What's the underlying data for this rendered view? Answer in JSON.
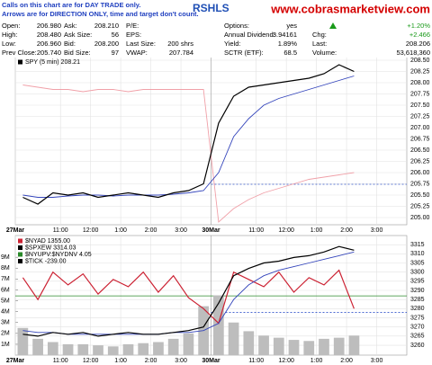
{
  "header": {
    "title": "RSHLS",
    "watermark": "www.cobrasmarketview.com",
    "notes": [
      "Calls on this chart are for DAY TRADE only.",
      "Arrows are for DIRECTION ONLY, time and target don't count."
    ]
  },
  "quote": {
    "rows": [
      [
        {
          "label": "Open:",
          "value": "206.980"
        },
        {
          "label": "Ask:",
          "value": "208.210"
        },
        {
          "label": "P/E:"
        },
        {
          "label": "Options:",
          "value": "yes"
        },
        {
          "value": "+1.20%",
          "color": "#1a9a1a"
        }
      ],
      [
        {
          "label": "High:",
          "value": "208.480"
        },
        {
          "label": "Ask Size:",
          "value": "56"
        },
        {
          "label": "EPS:"
        },
        {
          "label": "Annual Dividend:",
          "value": "3.94161"
        },
        {
          "label": "Chg:",
          "value": "+2.466",
          "color": "#1a9a1a"
        }
      ],
      [
        {
          "label": "Low:",
          "value": "206.960"
        },
        {
          "label": "Bid:",
          "value": "208.200"
        },
        {
          "label": "Last Size:",
          "value": "200 shrs"
        },
        {
          "label": "Yield:",
          "value": "1.89%"
        },
        {
          "label": "Last:",
          "value": "208.206"
        }
      ],
      [
        {
          "label": "Prev Close:",
          "value": "205.740"
        },
        {
          "label": "Bid Size:",
          "value": "97"
        },
        {
          "label": "VWAP:",
          "value": "207.784"
        },
        {
          "label": "SCTR (ETF):",
          "value": "68.5"
        },
        {
          "label": "Volume:",
          "value": "53,618,360"
        }
      ]
    ]
  },
  "chart_data": [
    {
      "type": "line",
      "grid": true,
      "categories": [
        "27Mar",
        null,
        null,
        "11:00",
        null,
        "12:00",
        null,
        "1:00",
        null,
        "2:00",
        null,
        "3:00",
        null,
        "30Mar",
        null,
        null,
        "11:00",
        null,
        "12:00",
        null,
        "1:00",
        null,
        "2:00",
        null,
        "3:00",
        null
      ],
      "ylim": [
        204.84,
        208.58
      ],
      "yticks": [
        {
          "value": 205,
          "label": "205.00"
        },
        {
          "value": 205.25,
          "label": "205.25"
        },
        {
          "value": 205.5,
          "label": "205.50"
        },
        {
          "value": 205.75,
          "label": "205.75"
        },
        {
          "value": 206,
          "label": "206.00"
        },
        {
          "value": 206.25,
          "label": "206.25"
        },
        {
          "value": 206.5,
          "label": "206.50"
        },
        {
          "value": 206.75,
          "label": "206.75"
        },
        {
          "value": 207,
          "label": "207.00"
        },
        {
          "value": 207.25,
          "label": "207.25"
        },
        {
          "value": 207.5,
          "label": "207.50"
        },
        {
          "value": 207.75,
          "label": "207.75"
        },
        {
          "value": 208,
          "label": "208.00"
        },
        {
          "value": 208.25,
          "label": "208.25"
        },
        {
          "value": 208.5,
          "label": "208.50"
        }
      ],
      "hlines": [
        {
          "value": 205.74,
          "color": "#3355cc",
          "dashed": true
        }
      ],
      "series": [
        {
          "color": "#f0a0a8",
          "values": [
            207.95,
            207.9,
            207.85,
            207.85,
            207.8,
            207.85,
            207.85,
            207.8,
            207.85,
            207.85,
            207.85,
            207.85,
            207.85,
            204.9,
            205.2,
            205.4,
            205.55,
            205.65,
            205.75,
            205.85,
            205.9,
            205.95,
            206.0,
            null,
            null,
            null
          ]
        },
        {
          "color": "#3344bb",
          "values": [
            205.5,
            205.45,
            205.45,
            205.48,
            205.5,
            205.5,
            205.48,
            205.5,
            205.5,
            205.5,
            205.52,
            205.55,
            205.6,
            206.0,
            206.8,
            207.2,
            207.5,
            207.65,
            207.75,
            207.85,
            207.95,
            208.05,
            208.15,
            null,
            null,
            null
          ]
        },
        {
          "name": "SPY (5 min) 208.21",
          "color": "#000000",
          "values": [
            205.45,
            205.3,
            205.55,
            205.5,
            205.55,
            205.45,
            205.5,
            205.55,
            205.5,
            205.45,
            205.55,
            205.6,
            205.75,
            207.1,
            207.7,
            207.9,
            207.95,
            208.0,
            208.05,
            208.1,
            208.2,
            208.4,
            208.25,
            null,
            null,
            null
          ]
        }
      ]
    },
    {
      "type": "line",
      "grid": true,
      "categories": [
        "27Mar",
        null,
        null,
        "11:00",
        null,
        "12:00",
        null,
        "1:00",
        null,
        "2:00",
        null,
        "3:00",
        null,
        "30Mar",
        null,
        null,
        "11:00",
        null,
        "12:00",
        null,
        "1:00",
        null,
        "2:00",
        null,
        "3:00",
        null
      ],
      "ylim": [
        3254.6,
        3320
      ],
      "yticks": [
        3260,
        3265,
        3270,
        3275,
        3280,
        3285,
        3290,
        3295,
        3300,
        3305,
        3310,
        3315
      ],
      "y2lim": [
        0,
        11000000
      ],
      "y2ticks": [
        {
          "value": 1000000,
          "label": "1M"
        },
        {
          "value": 2000000,
          "label": "2M"
        },
        {
          "value": 3000000,
          "label": "3M"
        },
        {
          "value": 4000000,
          "label": "4M"
        },
        {
          "value": 5000000,
          "label": "5M"
        },
        {
          "value": 6000000,
          "label": "6M"
        },
        {
          "value": 7000000,
          "label": "7M"
        },
        {
          "value": 8000000,
          "label": "8M"
        },
        {
          "value": 9000000,
          "label": "9M"
        }
      ],
      "hlines": [
        {
          "value": 3287,
          "color": "#2a8a2a"
        },
        {
          "value": 3278,
          "color": "#3355cc",
          "dashed": true
        }
      ],
      "legend_extra": [
        {
          "name": "$NYUPV:$NYDNV 4.05",
          "color": "#2a8a2a"
        },
        {
          "name": "$TICK -239.00",
          "color": "#000000"
        }
      ],
      "series": [
        {
          "type": "bar",
          "axis": "y2",
          "color": "#bdbdbd",
          "values": [
            2500000,
            1500000,
            1200000,
            1000000,
            1000000,
            900000,
            800000,
            1000000,
            1100000,
            1200000,
            1500000,
            2000000,
            4500000,
            5500000,
            3000000,
            2200000,
            1800000,
            1600000,
            1400000,
            1300000,
            1500000,
            1600000,
            1800000,
            null,
            null,
            null
          ]
        },
        {
          "name": "$NYAD 1355.00",
          "color": "#cc2233",
          "values": [
            3297,
            3285,
            3300,
            3293,
            3299,
            3288,
            3296,
            3292,
            3300,
            3289,
            3298,
            3286,
            3280,
            3272,
            3300,
            3296,
            3292,
            3300,
            3289,
            3297,
            3293,
            3301,
            3280,
            null,
            null,
            null
          ]
        },
        {
          "color": "#3344bb",
          "values": [
            3268,
            3267,
            3267,
            3266,
            3266,
            3266,
            3266,
            3266,
            3266,
            3266,
            3267,
            3267,
            3268,
            3272,
            3285,
            3293,
            3298,
            3301,
            3303,
            3305,
            3307,
            3309,
            3311,
            null,
            null,
            null
          ]
        },
        {
          "name": "$SPXEW 3314.03",
          "color": "#000000",
          "values": [
            3266,
            3265,
            3267,
            3266,
            3267,
            3265,
            3266,
            3267,
            3266,
            3266,
            3267,
            3268,
            3270,
            3283,
            3298,
            3302,
            3305,
            3306,
            3308,
            3309,
            3311,
            3314,
            3312,
            null,
            null,
            null
          ]
        }
      ]
    }
  ]
}
